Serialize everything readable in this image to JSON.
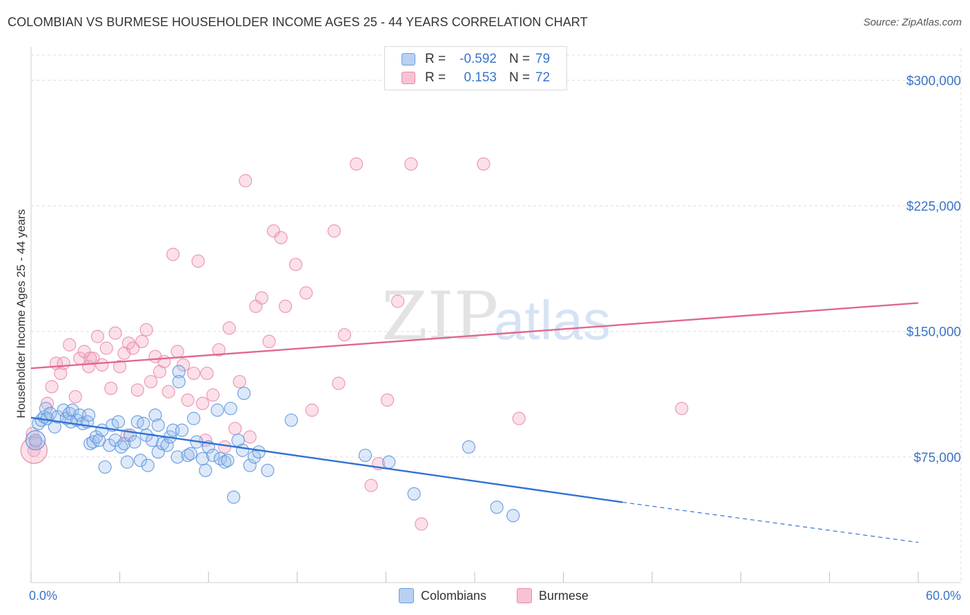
{
  "title": "COLOMBIAN VS BURMESE HOUSEHOLDER INCOME AGES 25 - 44 YEARS CORRELATION CHART",
  "source": "Source: ZipAtlas.com",
  "watermark": {
    "zip": "ZIP",
    "atlas": "atlas"
  },
  "legend": {
    "rows": [
      {
        "r_label": "R =",
        "r_value": "-0.592",
        "n_label": "N =",
        "n_value": "79",
        "color": "#6a9ee0",
        "fill": "#b9d0f3"
      },
      {
        "r_label": "R =",
        "r_value": "0.153",
        "n_label": "N =",
        "n_value": "72",
        "color": "#e58aa8",
        "fill": "#f7c3d3"
      }
    ]
  },
  "bottom_legend": {
    "series1": "Colombians",
    "series2": "Burmese"
  },
  "chart_data": {
    "type": "scatter",
    "title": "COLOMBIAN VS BURMESE HOUSEHOLDER INCOME AGES 25 - 44 YEARS CORRELATION CHART",
    "xlabel": "",
    "ylabel": "Householder Income Ages 25 - 44 years",
    "xlim": [
      0,
      60
    ],
    "ylim": [
      0,
      315000
    ],
    "x_tick_labels": [
      "0.0%",
      "60.0%"
    ],
    "y_ticks": [
      75000,
      150000,
      225000,
      300000
    ],
    "y_tick_labels": [
      "$75,000",
      "$150,000",
      "$225,000",
      "$300,000"
    ],
    "grid": true,
    "legend_position": "top-center",
    "series": [
      {
        "name": "Colombians",
        "color": "#5b93dd",
        "trend": {
          "x": [
            0.0,
            40.0
          ],
          "y": [
            98500,
            48000
          ],
          "dashed_to": [
            60.0,
            24000
          ]
        },
        "points": [
          [
            0.5,
            95000
          ],
          [
            0.7,
            97000
          ],
          [
            0.9,
            99000
          ],
          [
            1.0,
            104000
          ],
          [
            1.1,
            98000
          ],
          [
            1.3,
            101000
          ],
          [
            1.6,
            93000
          ],
          [
            1.8,
            99000
          ],
          [
            2.2,
            103000
          ],
          [
            2.4,
            98000
          ],
          [
            2.6,
            101000
          ],
          [
            2.8,
            103000
          ],
          [
            3.1,
            97000
          ],
          [
            3.3,
            100000
          ],
          [
            3.5,
            95000
          ],
          [
            3.8,
            96000
          ],
          [
            4.0,
            83000
          ],
          [
            4.2,
            84000
          ],
          [
            4.4,
            87000
          ],
          [
            4.6,
            85000
          ],
          [
            4.8,
            91000
          ],
          [
            5.0,
            69000
          ],
          [
            5.3,
            82000
          ],
          [
            5.5,
            94000
          ],
          [
            5.7,
            85000
          ],
          [
            5.9,
            96000
          ],
          [
            6.1,
            81000
          ],
          [
            6.3,
            83000
          ],
          [
            6.5,
            72000
          ],
          [
            6.7,
            88000
          ],
          [
            7.0,
            84000
          ],
          [
            7.2,
            96000
          ],
          [
            7.4,
            73000
          ],
          [
            7.6,
            95000
          ],
          [
            7.8,
            88000
          ],
          [
            7.9,
            70000
          ],
          [
            8.2,
            85000
          ],
          [
            8.4,
            100000
          ],
          [
            8.6,
            78000
          ],
          [
            8.9,
            83000
          ],
          [
            9.2,
            82000
          ],
          [
            9.4,
            87000
          ],
          [
            9.6,
            91000
          ],
          [
            9.9,
            75000
          ],
          [
            10.2,
            91000
          ],
          [
            10.6,
            76000
          ],
          [
            10.8,
            77000
          ],
          [
            11.0,
            98000
          ],
          [
            11.2,
            84000
          ],
          [
            11.6,
            74000
          ],
          [
            11.8,
            67000
          ],
          [
            12.0,
            81000
          ],
          [
            12.3,
            76000
          ],
          [
            12.6,
            103000
          ],
          [
            12.8,
            74000
          ],
          [
            13.1,
            72000
          ],
          [
            13.3,
            73000
          ],
          [
            13.5,
            104000
          ],
          [
            13.7,
            51000
          ],
          [
            14.0,
            85000
          ],
          [
            14.3,
            79000
          ],
          [
            14.8,
            70000
          ],
          [
            15.1,
            75000
          ],
          [
            15.4,
            78000
          ],
          [
            16.0,
            67000
          ],
          [
            17.6,
            97000
          ],
          [
            10.0,
            126000
          ],
          [
            14.4,
            113000
          ],
          [
            22.6,
            76000
          ],
          [
            24.2,
            72000
          ],
          [
            25.9,
            53000
          ],
          [
            29.6,
            81000
          ],
          [
            31.5,
            45000
          ],
          [
            32.6,
            40000
          ],
          [
            10.0,
            120000
          ],
          [
            2.7,
            96000
          ],
          [
            3.9,
            100000
          ],
          [
            8.6,
            94000
          ],
          [
            0.3,
            85000
          ]
        ]
      },
      {
        "name": "Burmese",
        "color": "#e88aa9",
        "trend": {
          "x": [
            0.0,
            60.0
          ],
          "y": [
            128000,
            167000
          ]
        },
        "points": [
          [
            0.1,
            89000
          ],
          [
            0.2,
            79000
          ],
          [
            0.3,
            84000
          ],
          [
            1.1,
            107000
          ],
          [
            1.4,
            117000
          ],
          [
            1.7,
            131000
          ],
          [
            2.0,
            125000
          ],
          [
            2.2,
            131000
          ],
          [
            2.6,
            142000
          ],
          [
            3.0,
            111000
          ],
          [
            3.3,
            134000
          ],
          [
            3.6,
            138000
          ],
          [
            3.9,
            129000
          ],
          [
            4.2,
            134000
          ],
          [
            4.5,
            147000
          ],
          [
            4.8,
            130000
          ],
          [
            5.1,
            140000
          ],
          [
            5.4,
            116000
          ],
          [
            5.7,
            149000
          ],
          [
            6.0,
            129000
          ],
          [
            6.3,
            137000
          ],
          [
            6.6,
            143000
          ],
          [
            6.9,
            140000
          ],
          [
            7.2,
            115000
          ],
          [
            7.5,
            144000
          ],
          [
            7.8,
            151000
          ],
          [
            8.1,
            120000
          ],
          [
            8.4,
            135000
          ],
          [
            8.7,
            126000
          ],
          [
            9.0,
            132000
          ],
          [
            9.3,
            114000
          ],
          [
            9.6,
            196000
          ],
          [
            9.9,
            138000
          ],
          [
            10.3,
            130000
          ],
          [
            10.6,
            109000
          ],
          [
            11.0,
            125000
          ],
          [
            11.3,
            192000
          ],
          [
            11.6,
            107000
          ],
          [
            11.9,
            125000
          ],
          [
            12.3,
            112000
          ],
          [
            12.7,
            139000
          ],
          [
            13.1,
            81000
          ],
          [
            13.4,
            152000
          ],
          [
            13.8,
            92000
          ],
          [
            14.1,
            120000
          ],
          [
            14.5,
            240000
          ],
          [
            14.8,
            87000
          ],
          [
            15.2,
            165000
          ],
          [
            15.6,
            170000
          ],
          [
            16.1,
            144000
          ],
          [
            16.4,
            210000
          ],
          [
            16.9,
            206000
          ],
          [
            17.2,
            165000
          ],
          [
            17.9,
            190000
          ],
          [
            18.6,
            173000
          ],
          [
            19.0,
            103000
          ],
          [
            20.5,
            210000
          ],
          [
            20.8,
            119000
          ],
          [
            21.2,
            148000
          ],
          [
            22.0,
            250000
          ],
          [
            23.0,
            58000
          ],
          [
            23.5,
            71000
          ],
          [
            24.1,
            109000
          ],
          [
            24.8,
            168000
          ],
          [
            25.7,
            250000
          ],
          [
            26.4,
            35000
          ],
          [
            30.6,
            250000
          ],
          [
            33.0,
            98000
          ],
          [
            44.0,
            104000
          ],
          [
            11.8,
            85000
          ],
          [
            4.0,
            134000
          ],
          [
            6.5,
            88000
          ]
        ]
      }
    ]
  }
}
